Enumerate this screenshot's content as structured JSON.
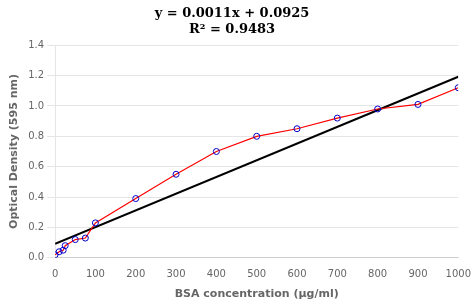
{
  "chart_data": {
    "type": "line",
    "annotations": [
      "y = 0.0011x + 0.0925",
      "R² = 0.9483"
    ],
    "x_label": "BSA concentration (μg/ml)",
    "y_label": "Optical Density (595 nm)",
    "series": [
      {
        "type": "line",
        "color": "#ff0000",
        "x": [
          0,
          10,
          20,
          25,
          50,
          75,
          100,
          200,
          300,
          400,
          500,
          600,
          700,
          800,
          900,
          1000
        ],
        "values": [
          0.02,
          0.04,
          0.05,
          0.08,
          0.12,
          0.13,
          0.23,
          0.39,
          0.55,
          0.7,
          0.8,
          0.85,
          0.92,
          0.98,
          1.01,
          1.12
        ]
      },
      {
        "type": "scatter",
        "marker": "circle",
        "color": "#0000cc",
        "x": [
          0,
          10,
          20,
          25,
          50,
          75,
          100,
          200,
          300,
          400,
          500,
          600,
          700,
          800,
          900,
          1000
        ],
        "values": [
          0.02,
          0.04,
          0.05,
          0.08,
          0.12,
          0.13,
          0.23,
          0.39,
          0.55,
          0.7,
          0.8,
          0.85,
          0.92,
          0.98,
          1.01,
          1.12
        ]
      },
      {
        "type": "line",
        "color": "#000000",
        "x": [
          0,
          1000
        ],
        "values": [
          0.0925,
          1.1925
        ]
      }
    ],
    "xlim": [
      0,
      1000
    ],
    "ylim": [
      0,
      1.4
    ],
    "xticks": [
      0,
      100,
      200,
      300,
      400,
      500,
      600,
      700,
      800,
      900,
      1000
    ],
    "yticks": [
      {
        "value": 0,
        "label": "0.0"
      },
      0.2,
      0.4,
      0.6,
      0.8,
      {
        "value": 1,
        "label": "1.0"
      },
      1.2,
      1.4
    ],
    "grid": "y"
  }
}
